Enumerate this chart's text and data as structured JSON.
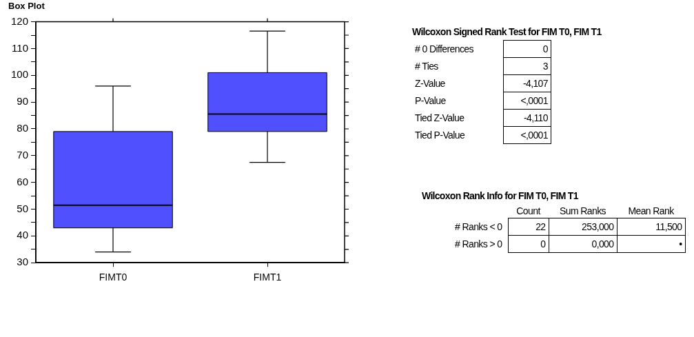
{
  "chart_data": [
    {
      "type": "box",
      "title": "Box Plot",
      "categories": [
        "FIMT0",
        "FIMT1"
      ],
      "color": "#5050ff",
      "boxes": [
        {
          "low": 34,
          "q1": 43,
          "median": 51.5,
          "q3": 79,
          "high": 96
        },
        {
          "low": 67.5,
          "q1": 79,
          "median": 85.5,
          "q3": 101,
          "high": 116.5
        }
      ],
      "ylim": [
        30,
        120
      ],
      "yticks": [
        30,
        {
          "value": 35,
          "label": null
        },
        40,
        {
          "value": 45,
          "label": null
        },
        50,
        {
          "value": 55,
          "label": null
        },
        60,
        {
          "value": 65,
          "label": null
        },
        70,
        {
          "value": 75,
          "label": null
        },
        80,
        {
          "value": 85,
          "label": null
        },
        90,
        {
          "value": 95,
          "label": null
        },
        100,
        {
          "value": 105,
          "label": null
        },
        110,
        {
          "value": 115,
          "label": null
        },
        120
      ],
      "grid": false,
      "legend": false
    },
    {
      "type": "other",
      "title": "Wilcoxon Signed Rank Test for FIM T0, FIM T1",
      "annotations": [
        "# 0 Differences",
        "0",
        "# Ties",
        "3",
        "Z-Value",
        "-4,107",
        "P-Value",
        "<,0001",
        "Tied Z-Value",
        "-4,110",
        "Tied P-Value",
        "<,0001"
      ]
    },
    {
      "type": "other",
      "title": "Wilcoxon Rank Info for FIM T0, FIM T1",
      "annotations": [
        "Count",
        "Sum Ranks",
        "Mean Rank",
        "# Ranks < 0",
        "22",
        "253,000",
        "11,500",
        "# Ranks > 0",
        "0",
        "0,000",
        "•"
      ]
    }
  ]
}
